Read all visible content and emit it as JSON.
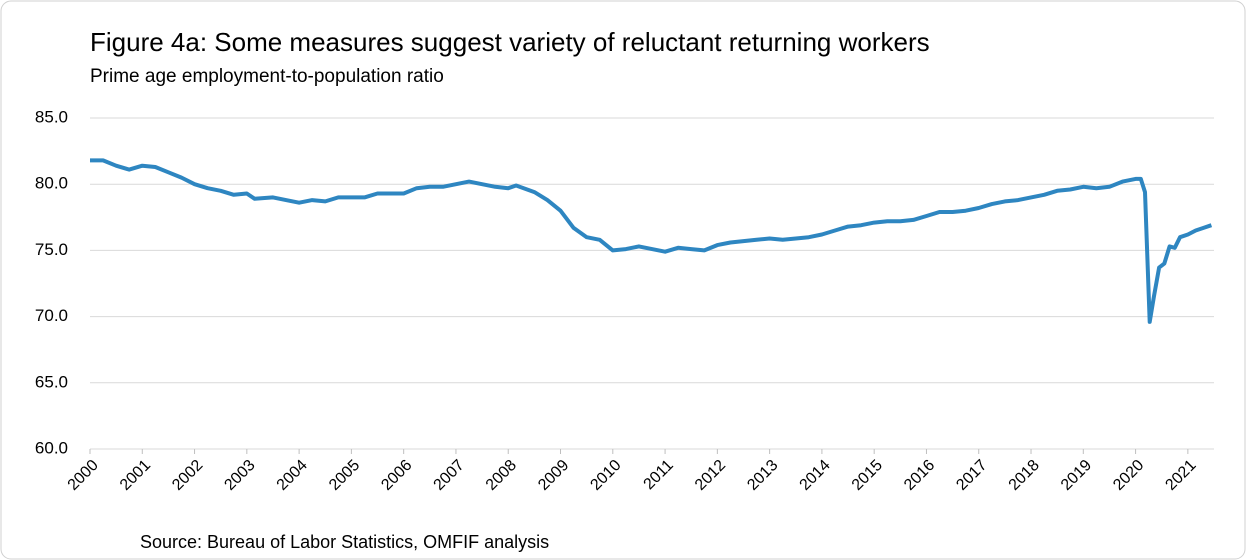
{
  "chart_data": {
    "type": "line",
    "title": "Figure 4a: Some measures suggest variety of reluctant returning workers",
    "subtitle": "Prime age employment-to-population ratio",
    "source": "Source: Bureau of Labor Statistics, OMFIF analysis",
    "x": [
      2000,
      2000.25,
      2000.5,
      2000.75,
      2001,
      2001.25,
      2001.5,
      2001.75,
      2002,
      2002.25,
      2002.5,
      2002.75,
      2003,
      2003.15,
      2003.5,
      2003.75,
      2004,
      2004.25,
      2004.5,
      2004.75,
      2005,
      2005.25,
      2005.5,
      2005.75,
      2006,
      2006.25,
      2006.5,
      2006.75,
      2007,
      2007.25,
      2007.5,
      2007.75,
      2008,
      2008.15,
      2008.5,
      2008.75,
      2009,
      2009.25,
      2009.5,
      2009.75,
      2010,
      2010.25,
      2010.5,
      2010.75,
      2011,
      2011.25,
      2011.5,
      2011.75,
      2012,
      2012.25,
      2012.5,
      2012.75,
      2013,
      2013.25,
      2013.5,
      2013.75,
      2014,
      2014.25,
      2014.5,
      2014.75,
      2015,
      2015.25,
      2015.5,
      2015.75,
      2016,
      2016.25,
      2016.5,
      2016.75,
      2017,
      2017.25,
      2017.5,
      2017.75,
      2018,
      2018.25,
      2018.5,
      2018.75,
      2019,
      2019.25,
      2019.5,
      2019.75,
      2020,
      2020.1,
      2020.18,
      2020.27,
      2020.35,
      2020.45,
      2020.55,
      2020.65,
      2020.75,
      2020.85,
      2021,
      2021.15,
      2021.3,
      2021.45
    ],
    "series": [
      {
        "name": "Prime age employment-to-population ratio",
        "color": "#2e86c1",
        "values": [
          81.8,
          81.8,
          81.4,
          81.1,
          81.4,
          81.3,
          80.9,
          80.5,
          80.0,
          79.7,
          79.5,
          79.2,
          79.3,
          78.9,
          79.0,
          78.8,
          78.6,
          78.8,
          78.7,
          79.0,
          79.0,
          79.0,
          79.3,
          79.3,
          79.3,
          79.7,
          79.8,
          79.8,
          80.0,
          80.2,
          80.0,
          79.8,
          79.7,
          79.9,
          79.4,
          78.8,
          78.0,
          76.7,
          76.0,
          75.8,
          75.0,
          75.1,
          75.3,
          75.1,
          74.9,
          75.2,
          75.1,
          75.0,
          75.4,
          75.6,
          75.7,
          75.8,
          75.9,
          75.8,
          75.9,
          76.0,
          76.2,
          76.5,
          76.8,
          76.9,
          77.1,
          77.2,
          77.2,
          77.3,
          77.6,
          77.9,
          77.9,
          78.0,
          78.2,
          78.5,
          78.7,
          78.8,
          79.0,
          79.2,
          79.5,
          79.6,
          79.8,
          79.7,
          79.8,
          80.2,
          80.4,
          80.4,
          79.4,
          69.6,
          71.5,
          73.7,
          74.0,
          75.3,
          75.2,
          76.0,
          76.2,
          76.5,
          76.7,
          76.9
        ]
      }
    ],
    "xlim": [
      2000,
      2021.5
    ],
    "xticks": [
      2000,
      2001,
      2002,
      2003,
      2004,
      2005,
      2006,
      2007,
      2008,
      2009,
      2010,
      2011,
      2012,
      2013,
      2014,
      2015,
      2016,
      2017,
      2018,
      2019,
      2020,
      2021
    ],
    "ylim": [
      60,
      85
    ],
    "yticks": [
      {
        "value": 60,
        "label": "60.0"
      },
      {
        "value": 65,
        "label": "65.0"
      },
      {
        "value": 70,
        "label": "70.0"
      },
      {
        "value": 75,
        "label": "75.0"
      },
      {
        "value": 80,
        "label": "80.0"
      },
      {
        "value": 85,
        "label": "85.0"
      }
    ],
    "grid": true
  }
}
